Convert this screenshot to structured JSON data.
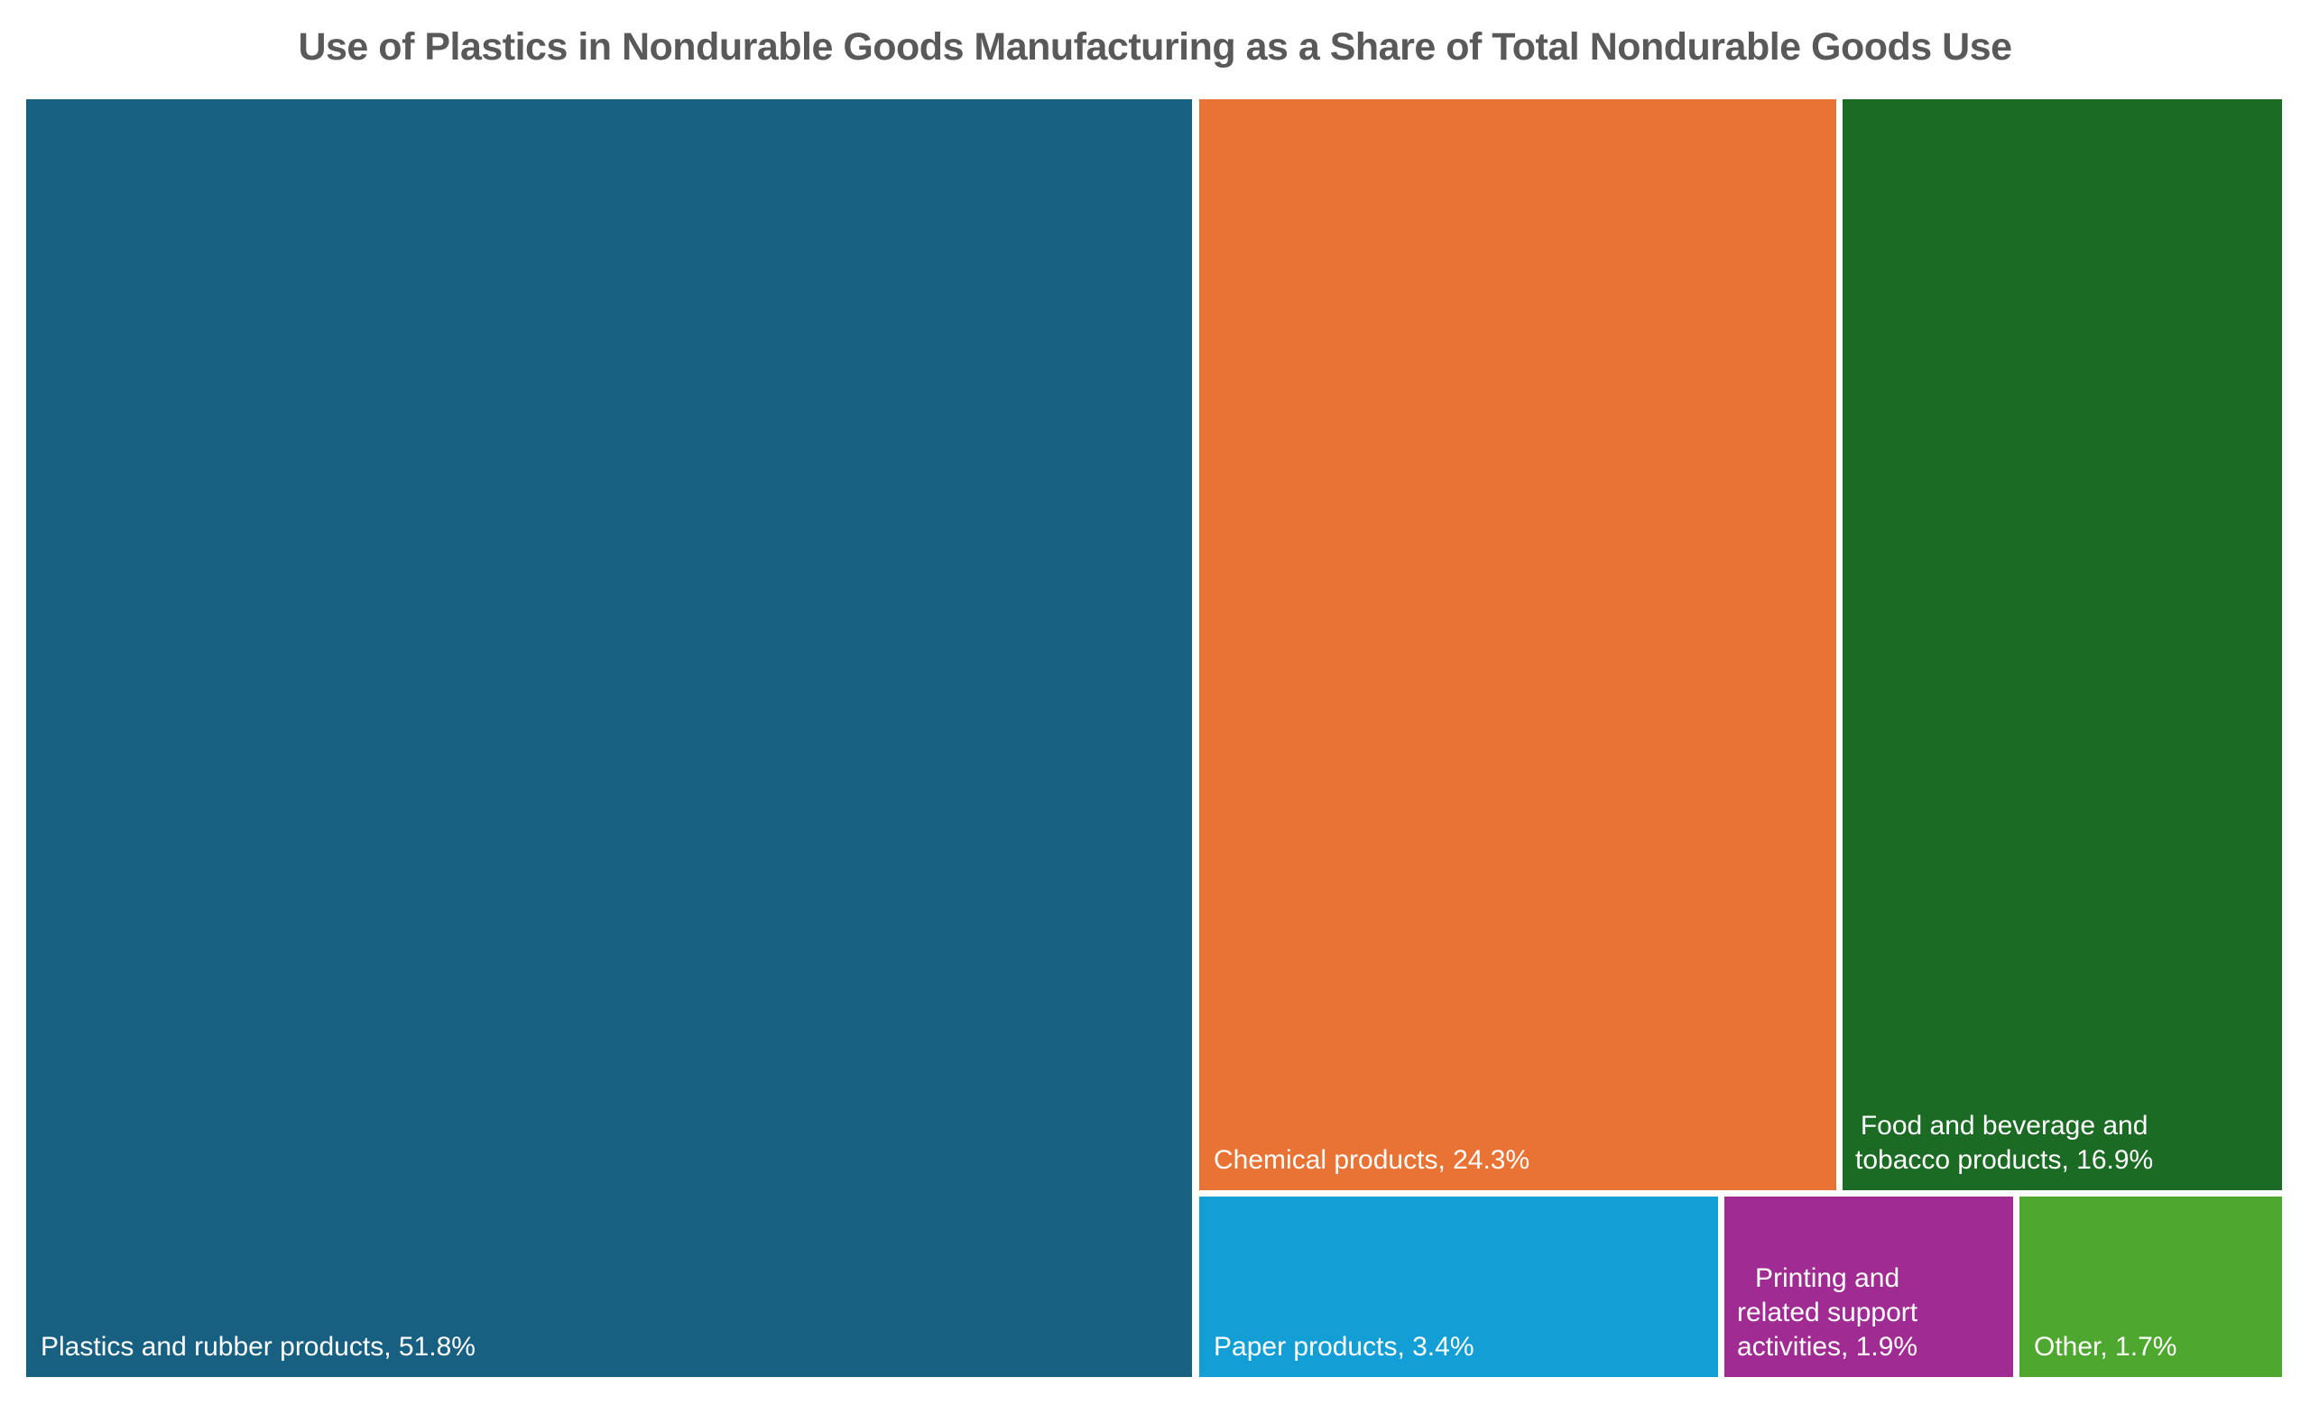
{
  "chart_data": {
    "type": "treemap",
    "title": "Use of Plastics in Nondurable Goods Manufacturing as a Share of Total Nondurable Goods Use",
    "unit": "%",
    "items": [
      {
        "name": "Plastics and rubber products",
        "value": 51.8,
        "label": "Plastics and rubber products, 51.8%",
        "color": "#176082"
      },
      {
        "name": "Chemical products",
        "value": 24.3,
        "label": "Chemical products, 24.3%",
        "color": "#E97334"
      },
      {
        "name": "Food and beverage and tobacco products",
        "value": 16.9,
        "label_lines": [
          "Food and beverage and",
          "tobacco products, 16.9%"
        ],
        "color": "#1B6B24"
      },
      {
        "name": "Paper products",
        "value": 3.4,
        "label": "Paper products, 3.4%",
        "color": "#139FD5"
      },
      {
        "name": "Printing and related support activities",
        "value": 1.9,
        "label_lines": [
          "Printing and",
          "related support",
          "activities, 1.9%"
        ],
        "color": "#A02B93"
      },
      {
        "name": "Other",
        "value": 1.7,
        "label": "Other, 1.7%",
        "color": "#4EA72E"
      }
    ]
  }
}
